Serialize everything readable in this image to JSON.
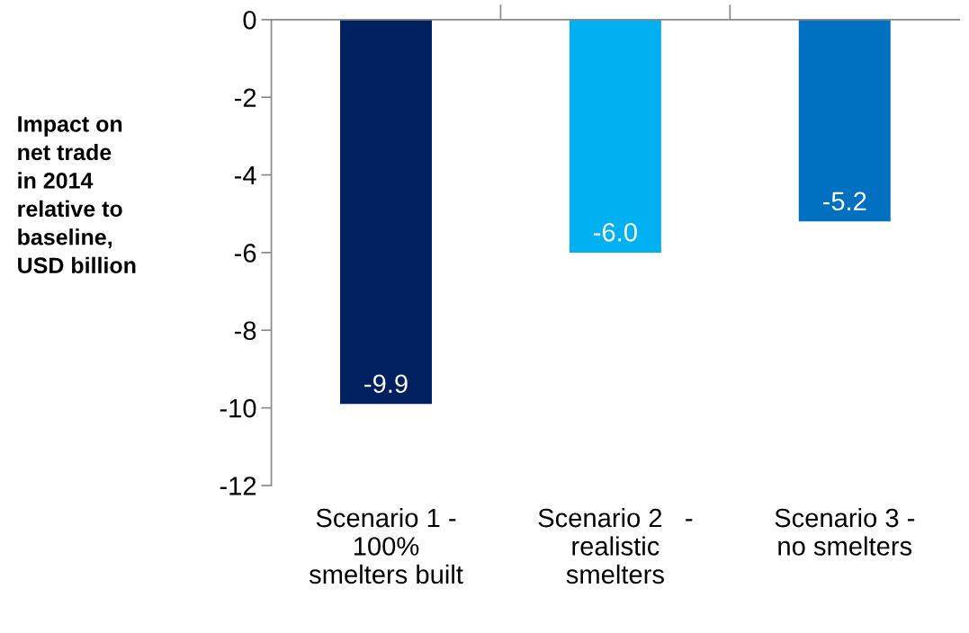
{
  "chart_data": {
    "type": "bar",
    "ylabel": "Impact on\nnet trade\nin 2014\nrelative to\nbaseline,\nUSD billion",
    "categories": [
      "Scenario 1 -\n100%\nsmelters built",
      "Scenario 2   -\nrealistic\nsmelters",
      "Scenario 3 -\nno smelters"
    ],
    "values": [
      -9.9,
      -6.0,
      -5.2
    ],
    "colors": [
      "#002060",
      "#00b0f0",
      "#0070c0"
    ],
    "value_labels": [
      "-9.9",
      "-6.0",
      "-5.2"
    ],
    "ylim": [
      -12,
      0
    ],
    "yticks": [
      -12,
      -10,
      -8,
      -6,
      -4,
      -2,
      0
    ],
    "grid": false,
    "legend": false
  }
}
